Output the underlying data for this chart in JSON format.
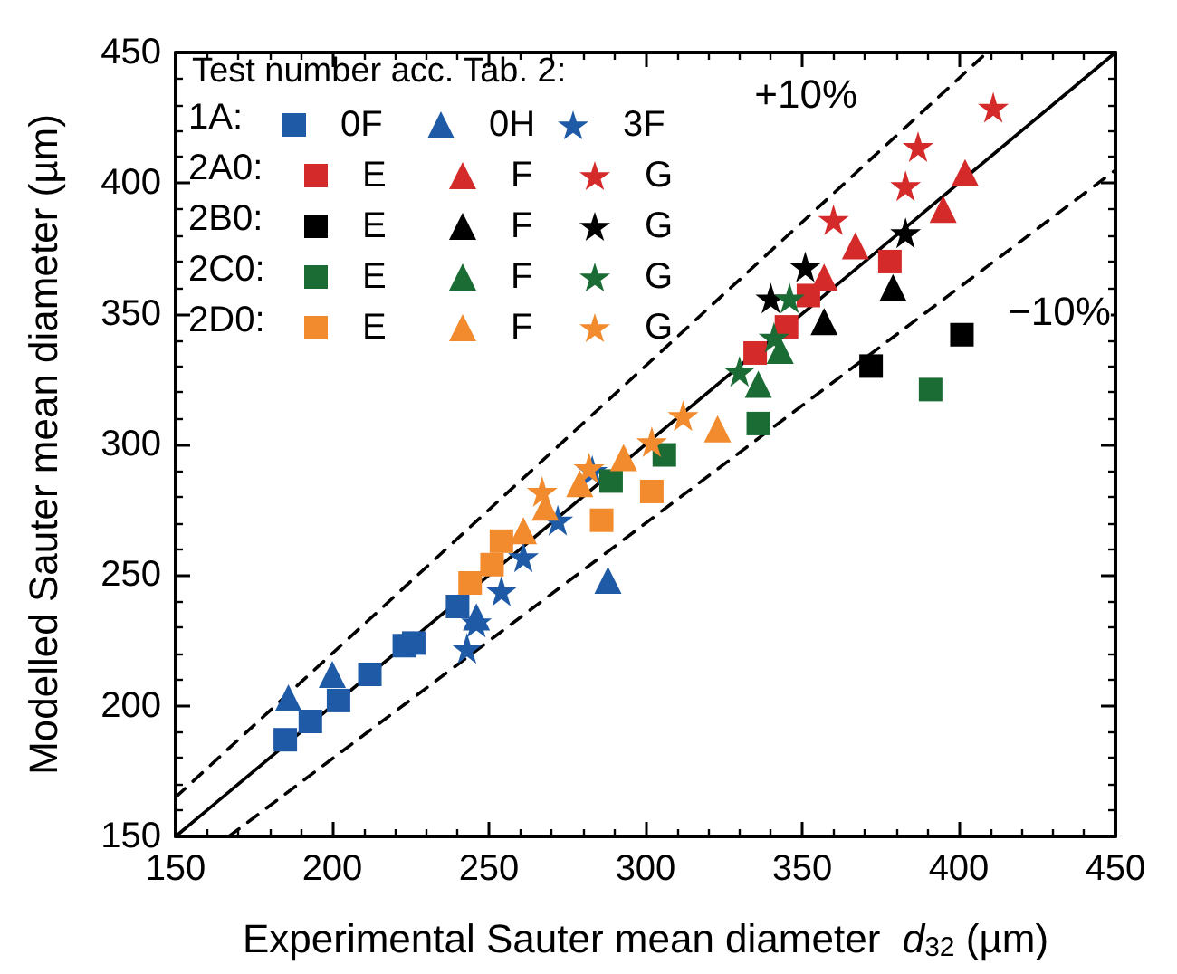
{
  "chart_data": {
    "type": "scatter",
    "xlabel": "Experimental Sauter mean diameter  $_{}$d$_{32}$ (µm)",
    "ylabel": "Modelled Sauter mean diameter (µm)",
    "legend_title": "Test number acc. Tab. 2:",
    "legend": "top left",
    "grid": false,
    "xlim": [
      150,
      450
    ],
    "xticks": [
      150,
      200,
      250,
      300,
      350,
      400,
      450
    ],
    "ylim": [
      150,
      450
    ],
    "yticks": [
      150,
      200,
      250,
      300,
      350,
      400,
      450
    ],
    "annotations": [
      "1A:",
      "2A0:",
      "2B0:",
      "2C0:",
      "2D0:",
      "+10%",
      "−10%"
    ],
    "series": [
      {
        "name": "0F",
        "color": "#1f5aa6",
        "marker": "square",
        "x": [
          185,
          193,
          202,
          212,
          223,
          226,
          240
        ],
        "values": [
          187,
          194,
          202,
          212,
          223,
          224,
          238
        ]
      },
      {
        "name": "0H",
        "color": "#1f5aa6",
        "marker": "triangle",
        "x": [
          186,
          200,
          246,
          288
        ],
        "values": [
          203,
          212,
          234,
          248
        ]
      },
      {
        "name": "3F",
        "color": "#1f5aa6",
        "marker": "star",
        "x": [
          243,
          246,
          254,
          261,
          272,
          283
        ],
        "values": [
          222,
          232,
          244,
          257,
          271,
          290
        ]
      },
      {
        "name": "E",
        "color": "#d42a2a",
        "marker": "square",
        "x": [
          335,
          345,
          352,
          378
        ],
        "values": [
          335,
          345,
          357,
          370
        ]
      },
      {
        "name": "F",
        "color": "#d42a2a",
        "marker": "triangle",
        "x": [
          357,
          367,
          395,
          402
        ],
        "values": [
          364,
          376,
          390,
          404
        ]
      },
      {
        "name": "G",
        "color": "#d42a2a",
        "marker": "star",
        "x": [
          360,
          383,
          387,
          411
        ],
        "values": [
          386,
          399,
          414,
          429
        ]
      },
      {
        "name": "E",
        "color": "#000000",
        "marker": "square",
        "x": [
          372,
          401
        ],
        "values": [
          330,
          342
        ]
      },
      {
        "name": "F",
        "color": "#000000",
        "marker": "triangle",
        "x": [
          357,
          379
        ],
        "values": [
          347,
          360
        ]
      },
      {
        "name": "G",
        "color": "#000000",
        "marker": "star",
        "x": [
          340,
          351,
          383
        ],
        "values": [
          356,
          368,
          381
        ]
      },
      {
        "name": "E",
        "color": "#1a6b34",
        "marker": "square",
        "x": [
          289,
          306,
          336,
          391
        ],
        "values": [
          286,
          296,
          308,
          321
        ]
      },
      {
        "name": "F",
        "color": "#1a6b34",
        "marker": "triangle",
        "x": [
          336,
          343
        ],
        "values": [
          323,
          336
        ]
      },
      {
        "name": "G",
        "color": "#1a6b34",
        "marker": "star",
        "x": [
          330,
          341,
          346
        ],
        "values": [
          328,
          341,
          356
        ]
      },
      {
        "name": "E",
        "color": "#f28a2e",
        "marker": "square",
        "x": [
          244,
          251,
          254,
          286,
          302
        ],
        "values": [
          247,
          254,
          263,
          271,
          282
        ]
      },
      {
        "name": "F",
        "color": "#f28a2e",
        "marker": "triangle",
        "x": [
          261,
          268,
          279,
          293,
          323
        ],
        "values": [
          267,
          276,
          285,
          295,
          306
        ]
      },
      {
        "name": "G",
        "color": "#f28a2e",
        "marker": "star",
        "x": [
          267,
          282,
          302,
          312
        ],
        "values": [
          282,
          291,
          301,
          311
        ]
      },
      {
        "type": "line",
        "color": "#000000",
        "line_style": "solid",
        "marker": "none",
        "x": [
          150,
          450
        ],
        "values": [
          150,
          450
        ]
      },
      {
        "type": "line",
        "color": "#000000",
        "line_style": "dashed",
        "marker": "none",
        "x": [
          150,
          409
        ],
        "values": [
          165,
          450
        ]
      },
      {
        "type": "line",
        "color": "#000000",
        "line_style": "dashed",
        "marker": "none",
        "x": [
          167,
          450
        ],
        "values": [
          150,
          405
        ]
      }
    ]
  }
}
